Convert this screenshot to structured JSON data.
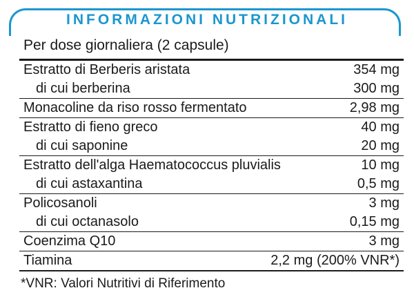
{
  "header": {
    "title": "INFORMAZIONI NUTRIZIONALI"
  },
  "serving_line": "Per dose giornaliera (2 capsule)",
  "table": {
    "rows": [
      {
        "name": "Estratto di Berberis aristata",
        "value": "354 mg"
      },
      {
        "name": "di cui berberina",
        "value": "300 mg"
      },
      {
        "name": "Monacoline da riso rosso fermentato",
        "value": "2,98 mg"
      },
      {
        "name": "Estratto di fieno greco",
        "value": "40 mg"
      },
      {
        "name": "di cui saponine",
        "value": "20 mg"
      },
      {
        "name": "Estratto dell'alga Haematococcus pluvialis",
        "value": "10 mg"
      },
      {
        "name": "di cui astaxantina",
        "value": "0,5 mg"
      },
      {
        "name": "Policosanoli",
        "value": "3 mg"
      },
      {
        "name": "di cui octanasolo",
        "value": "0,15 mg"
      },
      {
        "name": "Coenzima Q10",
        "value": "3 mg"
      },
      {
        "name": "Tiamina",
        "value": "2,2 mg (200% VNR*)"
      }
    ]
  },
  "footnote": "*VNR: Valori Nutritivi di Riferimento",
  "colors": {
    "accent_blue": "#1b96d0",
    "text": "#1a1a1a"
  }
}
